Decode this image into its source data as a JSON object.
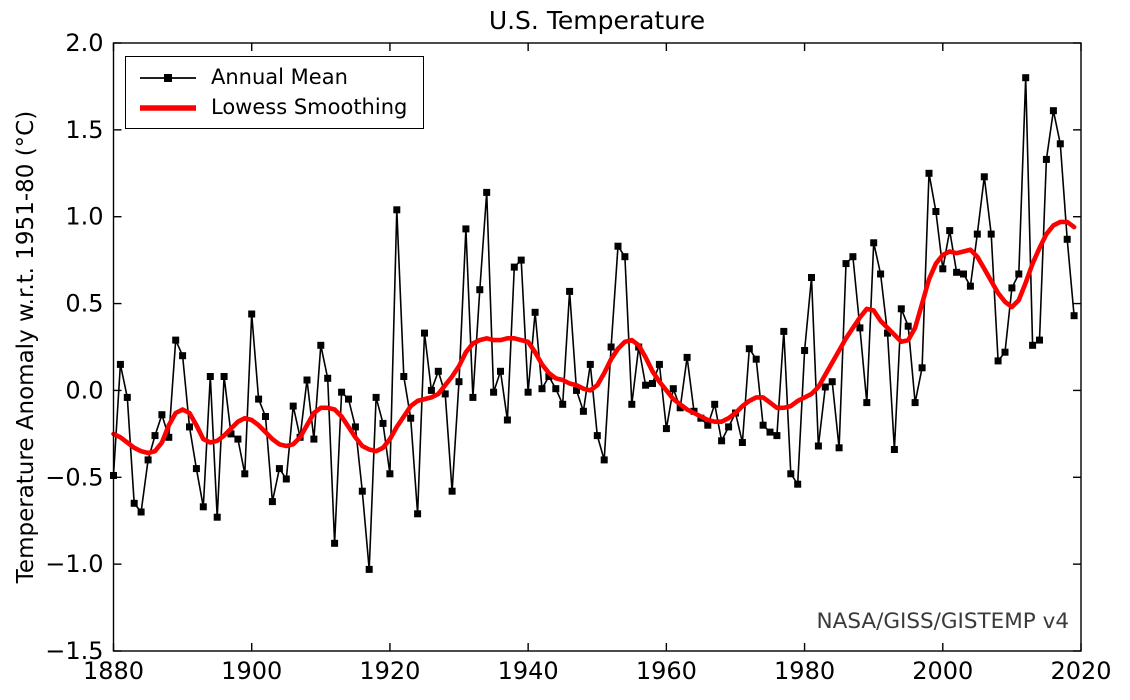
{
  "chart_data": {
    "type": "line",
    "title": "U.S. Temperature",
    "xlabel": "",
    "ylabel": "Temperature Anomaly w.r.t. 1951-80 (°C)",
    "annotation": "NASA/GISS/GISTEMP v4",
    "xlim": [
      1880,
      2020
    ],
    "ylim": [
      -1.5,
      2.0
    ],
    "grid": false,
    "legend_position": "upper left",
    "xticks": [
      {
        "v": 1880,
        "label": "1880"
      },
      {
        "v": 1900,
        "label": "1900"
      },
      {
        "v": 1920,
        "label": "1920"
      },
      {
        "v": 1940,
        "label": "1940"
      },
      {
        "v": 1960,
        "label": "1960"
      },
      {
        "v": 1980,
        "label": "1980"
      },
      {
        "v": 2000,
        "label": "2000"
      },
      {
        "v": 2020,
        "label": "2020"
      }
    ],
    "yticks": [
      {
        "v": 2.0,
        "label": "2.0"
      },
      {
        "v": 1.5,
        "label": "1.5"
      },
      {
        "v": 1.0,
        "label": "1.0"
      },
      {
        "v": 0.5,
        "label": "0.5"
      },
      {
        "v": 0.0,
        "label": "0.0"
      },
      {
        "v": -0.5,
        "label": "−0.5"
      },
      {
        "v": -1.0,
        "label": "−1.0"
      },
      {
        "v": -1.5,
        "label": "−1.5"
      }
    ],
    "colors": {
      "annual": "#000000",
      "lowess": "#ff0000",
      "annotation_text": "#3a3a3a",
      "axes": "#000000",
      "background": "#ffffff"
    },
    "x": [
      1880,
      1881,
      1882,
      1883,
      1884,
      1885,
      1886,
      1887,
      1888,
      1889,
      1890,
      1891,
      1892,
      1893,
      1894,
      1895,
      1896,
      1897,
      1898,
      1899,
      1900,
      1901,
      1902,
      1903,
      1904,
      1905,
      1906,
      1907,
      1908,
      1909,
      1910,
      1911,
      1912,
      1913,
      1914,
      1915,
      1916,
      1917,
      1918,
      1919,
      1920,
      1921,
      1922,
      1923,
      1924,
      1925,
      1926,
      1927,
      1928,
      1929,
      1930,
      1931,
      1932,
      1933,
      1934,
      1935,
      1936,
      1937,
      1938,
      1939,
      1940,
      1941,
      1942,
      1943,
      1944,
      1945,
      1946,
      1947,
      1948,
      1949,
      1950,
      1951,
      1952,
      1953,
      1954,
      1955,
      1956,
      1957,
      1958,
      1959,
      1960,
      1961,
      1962,
      1963,
      1964,
      1965,
      1966,
      1967,
      1968,
      1969,
      1970,
      1971,
      1972,
      1973,
      1974,
      1975,
      1976,
      1977,
      1978,
      1979,
      1980,
      1981,
      1982,
      1983,
      1984,
      1985,
      1986,
      1987,
      1988,
      1989,
      1990,
      1991,
      1992,
      1993,
      1994,
      1995,
      1996,
      1997,
      1998,
      1999,
      2000,
      2001,
      2002,
      2003,
      2004,
      2005,
      2006,
      2007,
      2008,
      2009,
      2010,
      2011,
      2012,
      2013,
      2014,
      2015,
      2016,
      2017,
      2018,
      2019
    ],
    "series": [
      {
        "name": "Annual Mean",
        "style": "line+square-markers",
        "y": [
          -0.49,
          0.15,
          -0.04,
          -0.65,
          -0.7,
          -0.4,
          -0.26,
          -0.14,
          -0.27,
          0.29,
          0.2,
          -0.21,
          -0.45,
          -0.67,
          0.08,
          -0.73,
          0.08,
          -0.25,
          -0.28,
          -0.48,
          0.44,
          -0.05,
          -0.15,
          -0.64,
          -0.45,
          -0.51,
          -0.09,
          -0.27,
          0.06,
          -0.28,
          0.26,
          0.07,
          -0.88,
          -0.01,
          -0.05,
          -0.21,
          -0.58,
          -1.03,
          -0.04,
          -0.19,
          -0.48,
          1.04,
          0.08,
          -0.16,
          -0.71,
          0.33,
          0.0,
          0.11,
          -0.02,
          -0.58,
          0.05,
          0.93,
          -0.04,
          0.58,
          1.14,
          -0.01,
          0.11,
          -0.17,
          0.71,
          0.75,
          -0.01,
          0.45,
          0.01,
          0.08,
          0.01,
          -0.08,
          0.57,
          0.0,
          -0.12,
          0.15,
          -0.26,
          -0.4,
          0.25,
          0.83,
          0.77,
          -0.08,
          0.25,
          0.03,
          0.04,
          0.15,
          -0.22,
          0.01,
          -0.1,
          0.19,
          -0.12,
          -0.16,
          -0.2,
          -0.08,
          -0.29,
          -0.21,
          -0.13,
          -0.3,
          0.24,
          0.18,
          -0.2,
          -0.24,
          -0.26,
          0.34,
          -0.48,
          -0.54,
          0.23,
          0.65,
          -0.32,
          0.02,
          0.05,
          -0.33,
          0.73,
          0.77,
          0.36,
          -0.07,
          0.85,
          0.67,
          0.33,
          -0.34,
          0.47,
          0.37,
          -0.07,
          0.13,
          1.25,
          1.03,
          0.7,
          0.92,
          0.68,
          0.67,
          0.6,
          0.9,
          1.23,
          0.9,
          0.17,
          0.22,
          0.59,
          0.67,
          1.8,
          0.26,
          0.29,
          1.33,
          1.61,
          1.42,
          0.87,
          0.43
        ]
      },
      {
        "name": "Lowess Smoothing",
        "style": "line",
        "y": [
          -0.25,
          -0.27,
          -0.3,
          -0.33,
          -0.35,
          -0.36,
          -0.35,
          -0.3,
          -0.2,
          -0.13,
          -0.11,
          -0.13,
          -0.2,
          -0.28,
          -0.3,
          -0.29,
          -0.26,
          -0.22,
          -0.18,
          -0.16,
          -0.17,
          -0.2,
          -0.24,
          -0.28,
          -0.31,
          -0.32,
          -0.31,
          -0.27,
          -0.2,
          -0.13,
          -0.1,
          -0.1,
          -0.11,
          -0.15,
          -0.21,
          -0.27,
          -0.32,
          -0.34,
          -0.35,
          -0.33,
          -0.28,
          -0.21,
          -0.15,
          -0.09,
          -0.06,
          -0.05,
          -0.04,
          -0.02,
          0.03,
          0.08,
          0.14,
          0.22,
          0.27,
          0.29,
          0.3,
          0.29,
          0.29,
          0.3,
          0.3,
          0.29,
          0.28,
          0.22,
          0.15,
          0.1,
          0.07,
          0.06,
          0.04,
          0.03,
          0.01,
          0.0,
          0.03,
          0.1,
          0.18,
          0.24,
          0.28,
          0.29,
          0.26,
          0.19,
          0.11,
          0.05,
          0.0,
          -0.05,
          -0.08,
          -0.11,
          -0.13,
          -0.15,
          -0.17,
          -0.18,
          -0.18,
          -0.16,
          -0.13,
          -0.09,
          -0.06,
          -0.04,
          -0.04,
          -0.07,
          -0.1,
          -0.1,
          -0.09,
          -0.06,
          -0.04,
          -0.02,
          0.02,
          0.09,
          0.16,
          0.23,
          0.3,
          0.36,
          0.42,
          0.47,
          0.46,
          0.4,
          0.36,
          0.32,
          0.28,
          0.29,
          0.36,
          0.5,
          0.64,
          0.73,
          0.78,
          0.8,
          0.79,
          0.8,
          0.81,
          0.77,
          0.7,
          0.63,
          0.56,
          0.51,
          0.48,
          0.52,
          0.62,
          0.73,
          0.82,
          0.9,
          0.95,
          0.97,
          0.97,
          0.94
        ]
      }
    ]
  }
}
